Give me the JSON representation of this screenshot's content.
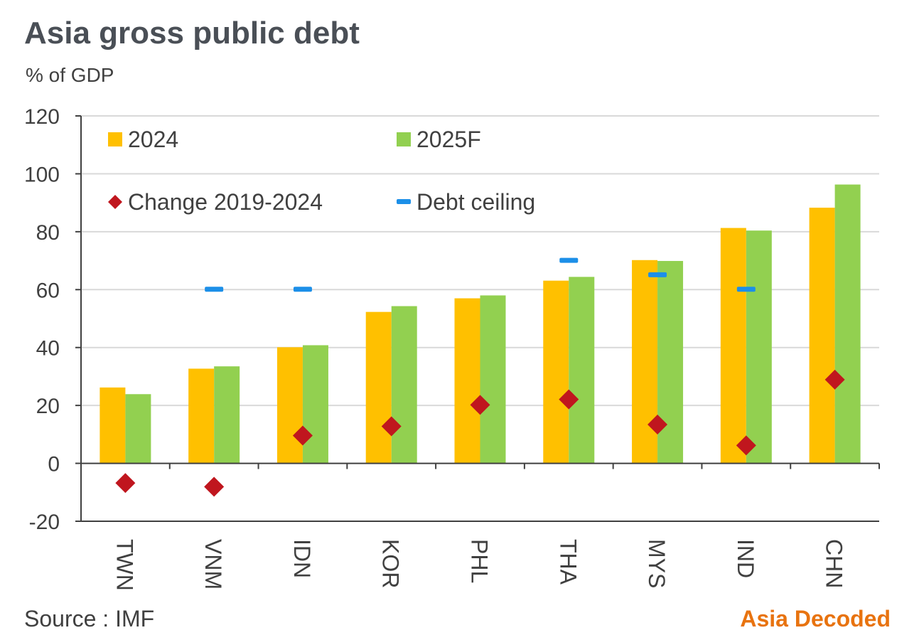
{
  "header": {
    "title": "Asia gross public debt",
    "unit": "% of GDP"
  },
  "footer": {
    "source": "Source : IMF",
    "brand": "Asia Decoded"
  },
  "colors": {
    "series_2024": "#ffc000",
    "series_2025": "#92d050",
    "change": "#c0161e",
    "ceiling": "#1c8fe8",
    "grid": "#d9d9d9",
    "axis": "#404040",
    "text": "#404040"
  },
  "chart_data": {
    "type": "bar",
    "title": "Asia gross public debt",
    "ylabel": "% of GDP",
    "xlabel": "",
    "ylim": [
      -20,
      120
    ],
    "yticks": [
      -20,
      0,
      20,
      40,
      60,
      80,
      100,
      120
    ],
    "grid": true,
    "legend_position": "top-left",
    "categories": [
      "TWN",
      "VNM",
      "IDN",
      "KOR",
      "PHL",
      "THA",
      "MYS",
      "IND",
      "CHN"
    ],
    "series": [
      {
        "name": "2024",
        "kind": "bar",
        "color": "#ffc000",
        "values": [
          26.2,
          32.7,
          40.1,
          52.3,
          57.0,
          63.1,
          70.2,
          81.3,
          88.3
        ]
      },
      {
        "name": "2025F",
        "kind": "bar",
        "color": "#92d050",
        "values": [
          23.9,
          33.5,
          40.8,
          54.3,
          58.0,
          64.4,
          69.9,
          80.4,
          96.3
        ]
      },
      {
        "name": "Change 2019-2024",
        "kind": "marker-diamond",
        "color": "#c0161e",
        "values": [
          -6.8,
          -8.1,
          9.6,
          12.8,
          20.2,
          22.1,
          13.4,
          6.2,
          28.9
        ]
      },
      {
        "name": "Debt ceiling",
        "kind": "marker-dash",
        "color": "#1c8fe8",
        "values": [
          null,
          60,
          60,
          null,
          null,
          70,
          65,
          60,
          null
        ]
      }
    ]
  }
}
